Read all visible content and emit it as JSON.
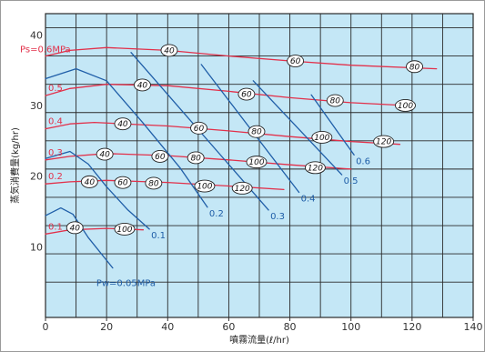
{
  "chart_data": {
    "type": "line",
    "xlabel": "噴霧流量(ℓ/hr)",
    "ylabel": "蒸気消費量(kg/hr)",
    "xlim": [
      0,
      140
    ],
    "ylim": [
      0,
      43
    ],
    "x_ticks": [
      "0",
      "20",
      "40",
      "60",
      "80",
      "100",
      "120",
      "140"
    ],
    "y_ticks": [
      "10",
      "20",
      "30",
      "40"
    ],
    "grid": true,
    "colors": {
      "plot_bg": "#c4e7f6",
      "grid": "#2a2a2a",
      "steam_curve": "#e2304a",
      "water_curve": "#1f5ea8"
    },
    "steam_pressure_series": [
      {
        "label": "Ps=0.6MPa",
        "x": [
          0,
          8,
          20,
          40,
          60,
          80,
          100,
          128
        ],
        "y": [
          37,
          37.8,
          38.2,
          37.8,
          37,
          36.3,
          35.7,
          35.2
        ]
      },
      {
        "label": "0.5",
        "x": [
          0,
          8,
          20,
          40,
          60,
          80,
          100,
          118
        ],
        "y": [
          31.4,
          32.4,
          33,
          32.8,
          32,
          31.1,
          30.4,
          30
        ]
      },
      {
        "label": "0.4",
        "x": [
          0,
          8,
          16,
          40,
          60,
          80,
          100,
          116
        ],
        "y": [
          26.7,
          27.4,
          27.6,
          27.1,
          26.4,
          25.6,
          24.9,
          24.5
        ]
      },
      {
        "label": "0.3",
        "x": [
          0,
          8,
          20,
          40,
          60,
          80,
          100
        ],
        "y": [
          22.3,
          22.8,
          23.2,
          22.9,
          22.3,
          21.6,
          21
        ]
      },
      {
        "label": "0.2",
        "x": [
          0,
          8,
          20,
          40,
          60,
          78
        ],
        "y": [
          18.9,
          19.2,
          19.4,
          19.1,
          18.6,
          18.1
        ]
      },
      {
        "label": "0.1",
        "x": [
          0,
          8,
          20,
          32
        ],
        "y": [
          11.8,
          12.4,
          12.6,
          12.4
        ]
      }
    ],
    "water_pressure_series": [
      {
        "label": "0.6",
        "x": [
          87,
          101
        ],
        "y": [
          31.5,
          23
        ]
      },
      {
        "label": "0.5",
        "x": [
          68,
          97
        ],
        "y": [
          33.5,
          20.2
        ]
      },
      {
        "label": "0.4",
        "x": [
          51,
          83
        ],
        "y": [
          35.8,
          17.7
        ]
      },
      {
        "label": "0.3",
        "x": [
          28,
          73
        ],
        "y": [
          37.5,
          15.2
        ]
      },
      {
        "label": "0.2",
        "x": [
          0,
          10,
          20,
          32,
          44,
          53
        ],
        "y": [
          33.8,
          35.2,
          33.5,
          27.5,
          21.2,
          15.6
        ]
      },
      {
        "label": "0.1",
        "x": [
          0,
          8,
          14,
          20,
          27,
          34
        ],
        "y": [
          22.5,
          23.5,
          21.7,
          18.5,
          15.2,
          12.5
        ]
      },
      {
        "label": "Pw=0.05MPa",
        "x": [
          0,
          5,
          9,
          14,
          22
        ],
        "y": [
          14.4,
          15.5,
          14.6,
          11.3,
          7
        ]
      }
    ],
    "air_annotations": [
      {
        "text": "40",
        "x": 40.5,
        "y": 37.8
      },
      {
        "text": "60",
        "x": 81.8,
        "y": 36.3
      },
      {
        "text": "80",
        "x": 120.8,
        "y": 35.5
      },
      {
        "text": "40",
        "x": 31.7,
        "y": 32.9
      },
      {
        "text": "60",
        "x": 65.8,
        "y": 31.6
      },
      {
        "text": "80",
        "x": 94.8,
        "y": 30.7
      },
      {
        "text": "100",
        "x": 117.8,
        "y": 30
      },
      {
        "text": "40",
        "x": 25.3,
        "y": 27.4
      },
      {
        "text": "60",
        "x": 50.2,
        "y": 26.8
      },
      {
        "text": "80",
        "x": 69.1,
        "y": 26.3
      },
      {
        "text": "100",
        "x": 90.5,
        "y": 25.5
      },
      {
        "text": "120",
        "x": 110.7,
        "y": 24.9
      },
      {
        "text": "40",
        "x": 19.4,
        "y": 23.1
      },
      {
        "text": "60",
        "x": 37.5,
        "y": 22.8
      },
      {
        "text": "80",
        "x": 49.2,
        "y": 22.6
      },
      {
        "text": "100",
        "x": 69.1,
        "y": 22
      },
      {
        "text": "120",
        "x": 88.3,
        "y": 21.2
      },
      {
        "text": "40",
        "x": 14.4,
        "y": 19.2
      },
      {
        "text": "60",
        "x": 25.3,
        "y": 19.1
      },
      {
        "text": "80",
        "x": 35.4,
        "y": 19
      },
      {
        "text": "100",
        "x": 52.1,
        "y": 18.6
      },
      {
        "text": "120",
        "x": 64.4,
        "y": 18.3
      },
      {
        "text": "40",
        "x": 9.6,
        "y": 12.7
      },
      {
        "text": "100",
        "x": 25.9,
        "y": 12.5
      }
    ]
  }
}
